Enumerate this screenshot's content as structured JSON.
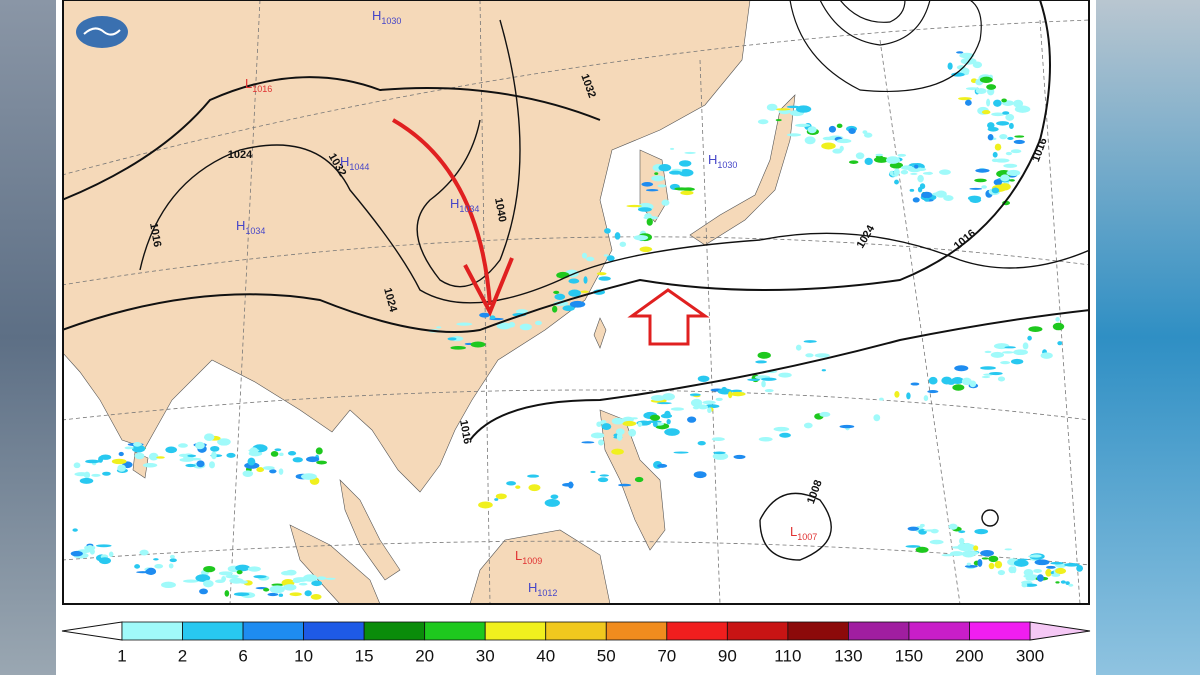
{
  "map": {
    "contour_labels": [
      "1032",
      "1024",
      "1032",
      "1040",
      "1016",
      "1024",
      "1024",
      "1016",
      "1016",
      "1016",
      "1008"
    ],
    "highs": [
      {
        "symbol": "H",
        "value": "1030"
      },
      {
        "symbol": "H",
        "value": "1044"
      },
      {
        "symbol": "H",
        "value": "1034"
      },
      {
        "symbol": "H",
        "value": "1034"
      },
      {
        "symbol": "H",
        "value": "1030"
      },
      {
        "symbol": "H",
        "value": "1012"
      }
    ],
    "lows": [
      {
        "symbol": "L",
        "value": "1016"
      },
      {
        "symbol": "L",
        "value": "1009"
      },
      {
        "symbol": "L",
        "value": "1007"
      }
    ]
  },
  "legend": {
    "labels": [
      1,
      2,
      6,
      10,
      15,
      20,
      30,
      40,
      50,
      70,
      90,
      110,
      130,
      150,
      200,
      300
    ],
    "colors": [
      "#a0fafa",
      "#28c8f0",
      "#1e8cf0",
      "#1e5ae6",
      "#0a8c0a",
      "#1ec81e",
      "#f0f01e",
      "#f0c81e",
      "#f08c1e",
      "#f01e1e",
      "#c81414",
      "#8c0a0a",
      "#a01ea0",
      "#c81ec8",
      "#f01ef0"
    ],
    "under_color": "#ffffff",
    "over_color": "#f5c8f5"
  }
}
